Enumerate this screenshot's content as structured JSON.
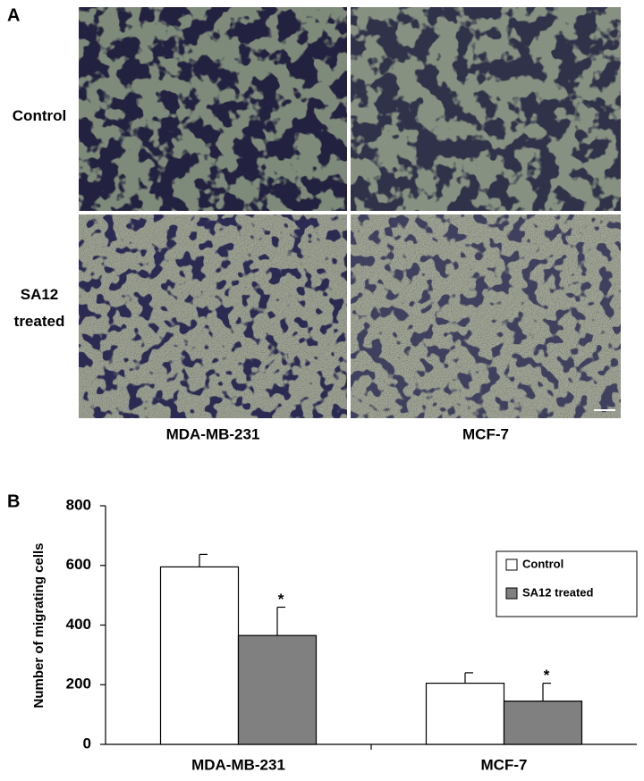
{
  "panel_a": {
    "label": "A",
    "row_labels": [
      "Control",
      "SA12 treated"
    ],
    "column_labels": [
      "MDA-MB-231",
      "MCF-7"
    ]
  },
  "chart_data": {
    "type": "bar",
    "panel_label": "B",
    "y_label": "Number of migrating cells",
    "categories": [
      "MDA-MB-231",
      "MCF-7"
    ],
    "series": [
      {
        "name": "Control",
        "color": "#ffffff",
        "values": [
          595,
          205
        ],
        "errors": [
          42,
          35
        ]
      },
      {
        "name": "SA12 treated",
        "color": "#808080",
        "values": [
          365,
          145
        ],
        "errors": [
          95,
          60
        ],
        "markers": [
          "*",
          "*"
        ]
      }
    ],
    "ylim": [
      0,
      800
    ],
    "yticks": [
      0,
      200,
      400,
      600,
      800
    ],
    "grid": false,
    "legend": "right"
  }
}
